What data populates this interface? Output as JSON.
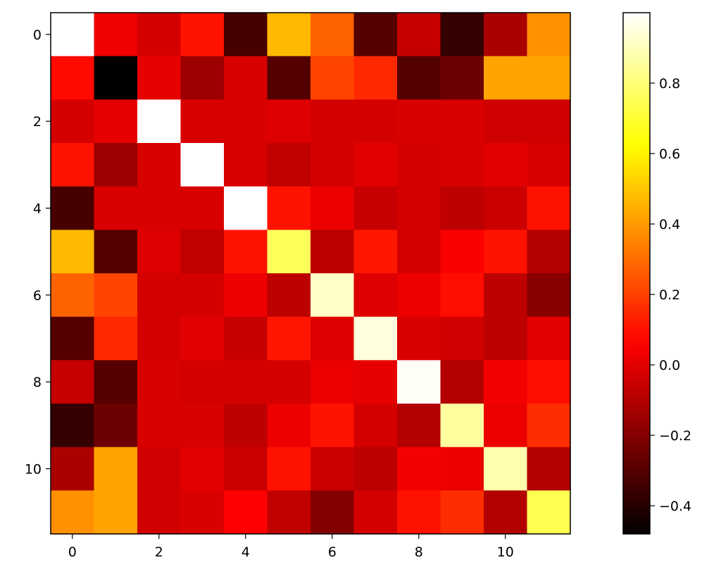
{
  "chart_data": {
    "type": "heatmap",
    "title": "",
    "xlabel": "",
    "ylabel": "",
    "colormap": "hot",
    "rows": 12,
    "cols": 12,
    "x_ticks": [
      "0",
      "2",
      "4",
      "6",
      "8",
      "10"
    ],
    "x_tick_values": [
      0,
      2,
      4,
      6,
      8,
      10
    ],
    "y_ticks": [
      "0",
      "2",
      "4",
      "6",
      "8",
      "10"
    ],
    "y_tick_values": [
      0,
      2,
      4,
      6,
      8,
      10
    ],
    "colorbar": {
      "vmin": -0.48,
      "vmax": 1.0,
      "ticks": [
        "−0.4",
        "−0.2",
        "0.0",
        "0.2",
        "0.4",
        "0.6",
        "0.8"
      ],
      "tick_values": [
        -0.4,
        -0.2,
        0.0,
        0.2,
        0.4,
        0.6,
        0.8
      ]
    },
    "matrix": [
      [
        1.0,
        0.03,
        -0.03,
        0.1,
        -0.33,
        0.47,
        0.28,
        -0.3,
        -0.06,
        -0.37,
        -0.12,
        0.38
      ],
      [
        0.08,
        -0.48,
        0.01,
        -0.15,
        -0.02,
        -0.3,
        0.21,
        0.15,
        -0.3,
        -0.25,
        0.42,
        0.42
      ],
      [
        -0.03,
        0.01,
        1.0,
        -0.02,
        -0.02,
        -0.01,
        -0.03,
        -0.03,
        -0.02,
        -0.02,
        -0.04,
        -0.04
      ],
      [
        0.1,
        -0.15,
        -0.02,
        1.0,
        -0.02,
        -0.07,
        -0.03,
        0.0,
        -0.03,
        -0.02,
        0.0,
        -0.02
      ],
      [
        -0.33,
        -0.02,
        -0.02,
        -0.02,
        1.0,
        0.1,
        0.02,
        -0.06,
        -0.03,
        -0.08,
        -0.05,
        0.1
      ],
      [
        0.47,
        -0.3,
        -0.01,
        -0.07,
        0.1,
        0.76,
        -0.08,
        0.11,
        -0.03,
        0.05,
        0.1,
        -0.1
      ],
      [
        0.28,
        0.21,
        -0.03,
        -0.03,
        0.02,
        -0.08,
        0.92,
        -0.01,
        0.02,
        0.09,
        -0.08,
        -0.19
      ],
      [
        -0.3,
        0.15,
        -0.03,
        0.0,
        -0.06,
        0.11,
        -0.01,
        0.95,
        -0.02,
        -0.04,
        -0.08,
        0.0
      ],
      [
        -0.06,
        -0.3,
        -0.02,
        -0.03,
        -0.03,
        -0.03,
        0.02,
        0.01,
        0.99,
        -0.1,
        0.04,
        0.09
      ],
      [
        -0.37,
        -0.25,
        -0.02,
        -0.02,
        -0.08,
        0.02,
        0.1,
        -0.03,
        -0.1,
        0.86,
        0.02,
        0.16
      ],
      [
        -0.12,
        0.42,
        -0.04,
        0.0,
        -0.05,
        0.1,
        -0.05,
        -0.08,
        0.04,
        0.02,
        0.88,
        -0.1
      ],
      [
        0.38,
        0.42,
        -0.04,
        -0.02,
        0.06,
        -0.07,
        -0.2,
        -0.03,
        0.1,
        0.16,
        -0.1,
        0.74
      ]
    ]
  }
}
